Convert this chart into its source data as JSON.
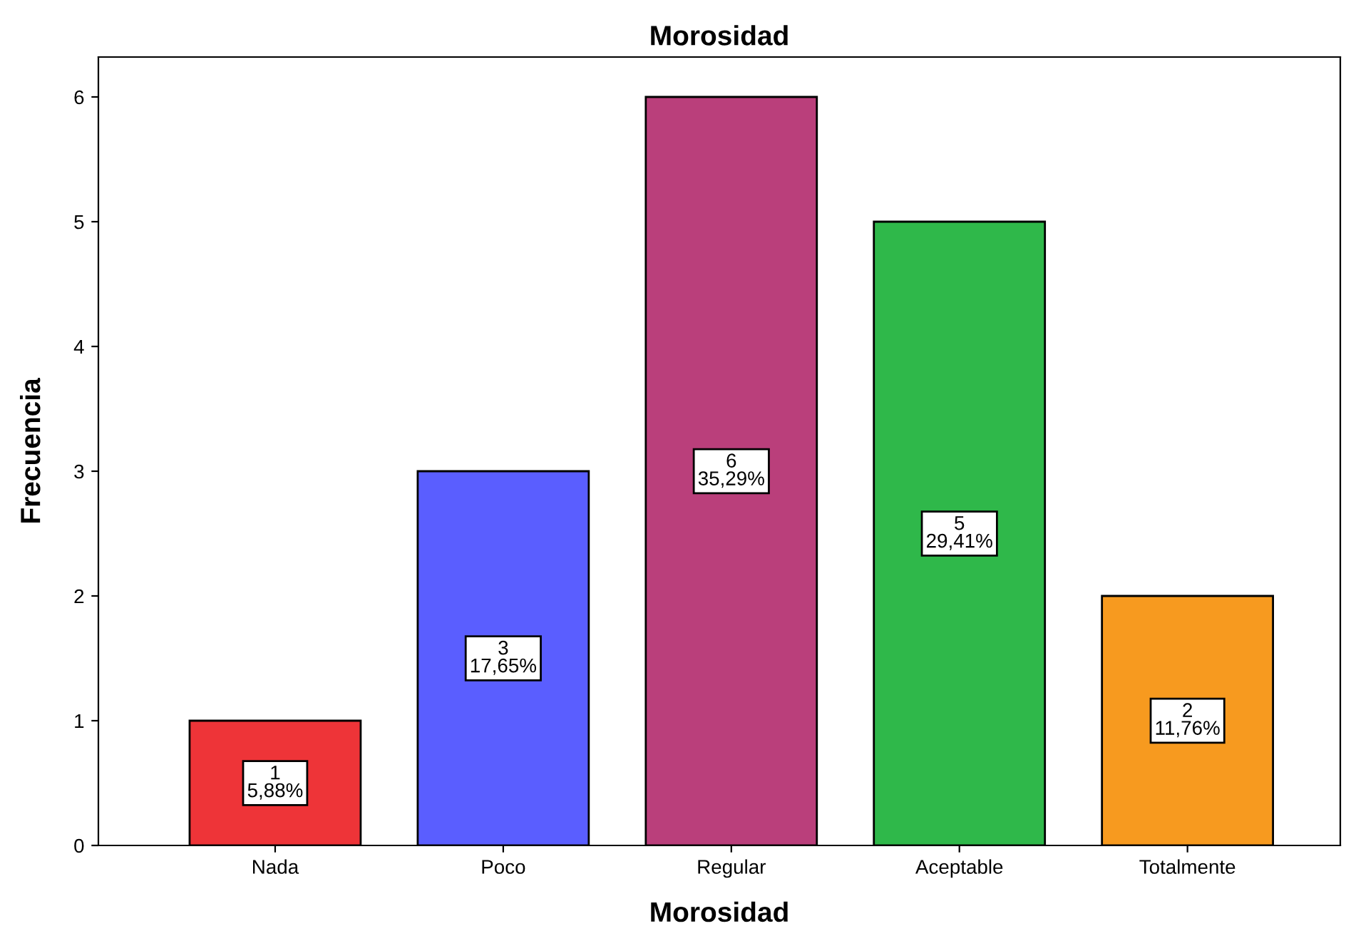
{
  "chart_data": {
    "type": "bar",
    "title": "Morosidad",
    "xlabel": "Morosidad",
    "ylabel": "Frecuencia",
    "categories": [
      "Nada",
      "Poco",
      "Regular",
      "Aceptable",
      "Totalmente"
    ],
    "values": [
      1,
      3,
      6,
      5,
      2
    ],
    "colors": [
      "#ee3438",
      "#5a5eff",
      "#ba3f7b",
      "#2fb84a",
      "#f79a1f"
    ],
    "value_labels": [
      "1\n5,88%",
      "3\n17,65%",
      "6\n35,29%",
      "5\n29,41%",
      "2\n11,76%"
    ],
    "ylim": [
      0,
      6.32
    ],
    "yticks": [
      0,
      1,
      2,
      3,
      4,
      5,
      6
    ],
    "grid": false,
    "legend": false
  }
}
